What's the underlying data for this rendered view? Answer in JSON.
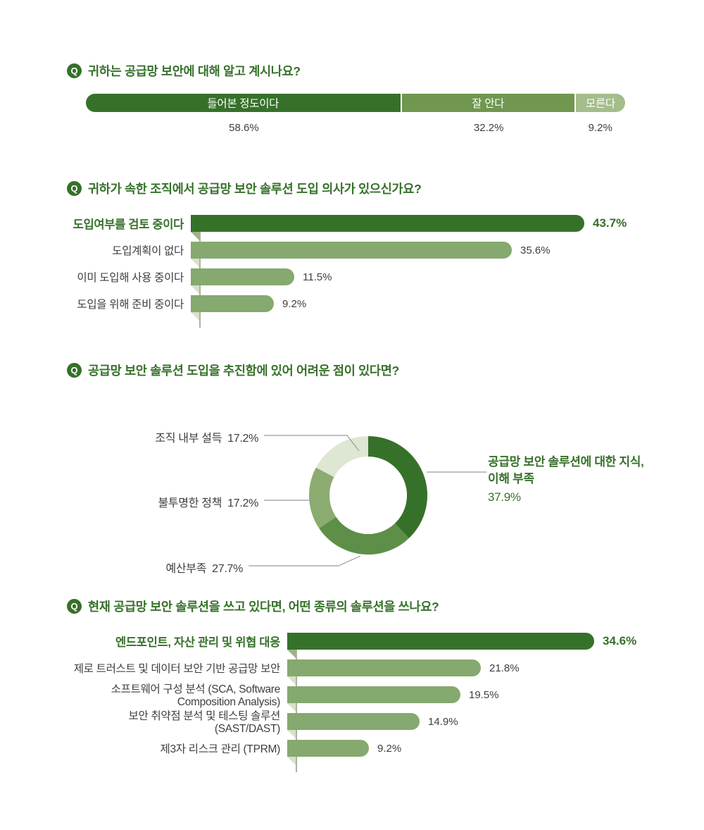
{
  "q_badge": "Q",
  "palette": {
    "dark_green": "#36712a",
    "q1_mid_green": "#70964f",
    "q1_light_green": "#a4bd8b",
    "sage_bar": "#85a96f",
    "donut_mid": "#5e8f48",
    "donut_sage": "#8cab70",
    "donut_pale": "#dde7d2",
    "fold_under_dark": "#9cb583",
    "fold_under_sage": "#d6e2c9",
    "axis_line": "#aab3a0",
    "leader_line": "#9a9a9a",
    "text_gray": "#3e3e3e",
    "bar_text_white": "#ffffff"
  },
  "chart_data": [
    {
      "type": "bar",
      "variant": "stacked-horizontal",
      "title": "귀하는 공급망 보안에 대해 알고 계시나요?",
      "categories": [
        "들어본 정도이다",
        "잘 안다",
        "모른다"
      ],
      "values": [
        58.6,
        32.2,
        9.2
      ],
      "value_labels": [
        "58.6%",
        "32.2%",
        "9.2%"
      ],
      "colors": [
        "#36712a",
        "#70964f",
        "#a4bd8b"
      ],
      "xlim": [
        0,
        100
      ],
      "legend": "none",
      "grid": false
    },
    {
      "type": "bar",
      "variant": "horizontal",
      "title": "귀하가 속한 조직에서 공급망 보안 솔루션 도입 의사가 있으신가요?",
      "categories": [
        "도입여부를 검토 중이다",
        "도입계획이 없다",
        "이미 도입해 사용 중이다",
        "도입을 위해 준비 중이다"
      ],
      "values": [
        43.7,
        35.6,
        11.5,
        9.2
      ],
      "value_labels": [
        "43.7%",
        "35.6%",
        "11.5%",
        "9.2%"
      ],
      "bar_colors": [
        "#36712a",
        "#85a96f",
        "#85a96f",
        "#85a96f"
      ],
      "highlighted_index": 0,
      "xlim": [
        0,
        45
      ],
      "grid": false
    },
    {
      "type": "pie",
      "variant": "donut",
      "title": "공급망 보안 솔루션 도입을 추진함에 있어 어려운 점이 있다면?",
      "categories": [
        "공급망 보안 솔루션에 대한 지식, 이해 부족",
        "예산부족",
        "불투명한 정책",
        "조직 내부 설득"
      ],
      "values": [
        37.9,
        27.7,
        17.2,
        17.2
      ],
      "value_labels": [
        "37.9%",
        "27.7%",
        "17.2%",
        "17.2%"
      ],
      "colors": [
        "#36712a",
        "#5e8f48",
        "#8cab70",
        "#dde7d2"
      ],
      "start_angle_deg": 0,
      "direction": "clockwise",
      "highlighted_index": 0,
      "legend": "callout-labels"
    },
    {
      "type": "bar",
      "variant": "horizontal",
      "title": "현재 공급망 보안 솔루션을 쓰고 있다면, 어떤 종류의 솔루션을 쓰나요?",
      "categories": [
        "엔드포인트, 자산 관리 및 위협 대응",
        "제로 트러스트 및 데이터 보안 기반 공급망 보안",
        "소프트웨어 구성 분석 (SCA, Software Composition Analysis)",
        "보안 취약점 분석 및 테스팅 솔루션 (SAST/DAST)",
        "제3자 리스크 관리 (TPRM)"
      ],
      "values": [
        34.6,
        21.8,
        19.5,
        14.9,
        9.2
      ],
      "value_labels": [
        "34.6%",
        "21.8%",
        "19.5%",
        "14.9%",
        "9.2%"
      ],
      "bar_colors": [
        "#36712a",
        "#85a96f",
        "#85a96f",
        "#85a96f",
        "#85a96f"
      ],
      "highlighted_index": 0,
      "xlim": [
        0,
        36
      ],
      "grid": false
    }
  ]
}
